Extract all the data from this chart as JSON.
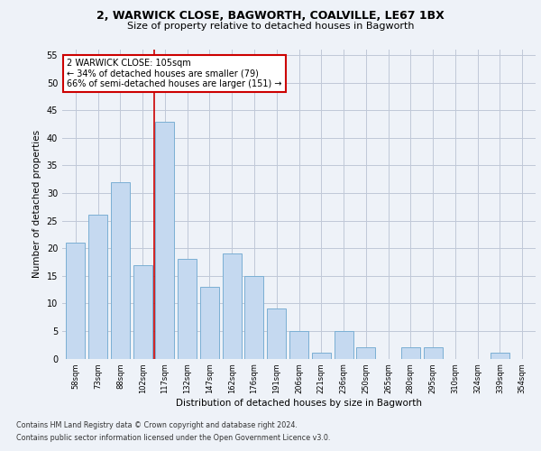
{
  "title_line1": "2, WARWICK CLOSE, BAGWORTH, COALVILLE, LE67 1BX",
  "title_line2": "Size of property relative to detached houses in Bagworth",
  "xlabel": "Distribution of detached houses by size in Bagworth",
  "ylabel": "Number of detached properties",
  "categories": [
    "58sqm",
    "73sqm",
    "88sqm",
    "102sqm",
    "117sqm",
    "132sqm",
    "147sqm",
    "162sqm",
    "176sqm",
    "191sqm",
    "206sqm",
    "221sqm",
    "236sqm",
    "250sqm",
    "265sqm",
    "280sqm",
    "295sqm",
    "310sqm",
    "324sqm",
    "339sqm",
    "354sqm"
  ],
  "values": [
    21,
    26,
    32,
    17,
    43,
    18,
    13,
    19,
    15,
    9,
    5,
    1,
    5,
    2,
    0,
    2,
    2,
    0,
    0,
    1,
    0
  ],
  "bar_color": "#c5d9f0",
  "bar_edge_color": "#7bafd4",
  "grid_color": "#c0c8d8",
  "vline_x": 3.5,
  "vline_color": "#cc0000",
  "annotation_text": "2 WARWICK CLOSE: 105sqm\n← 34% of detached houses are smaller (79)\n66% of semi-detached houses are larger (151) →",
  "annotation_box_color": "#ffffff",
  "annotation_box_edge_color": "#cc0000",
  "ylim": [
    0,
    56
  ],
  "yticks": [
    0,
    5,
    10,
    15,
    20,
    25,
    30,
    35,
    40,
    45,
    50,
    55
  ],
  "footer_line1": "Contains HM Land Registry data © Crown copyright and database right 2024.",
  "footer_line2": "Contains public sector information licensed under the Open Government Licence v3.0.",
  "background_color": "#eef2f8"
}
